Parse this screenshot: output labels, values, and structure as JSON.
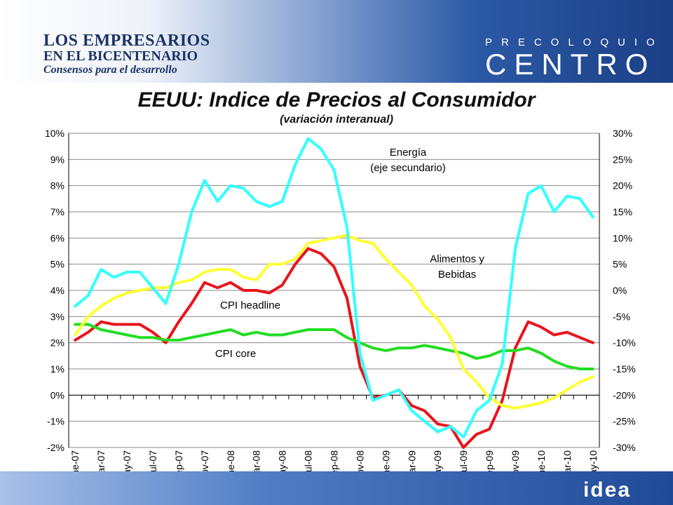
{
  "header": {
    "left_line1": "LOS EMPRESARIOS",
    "left_line2": "EN EL BICENTENARIO",
    "left_line3": "Consensos para el desarrollo",
    "right_line1": "PRECOLOQUIO",
    "right_line2": "CENTRO"
  },
  "footer": {
    "logo": "idea"
  },
  "chart_data": {
    "type": "line",
    "title": "EEUU: Indice de Precios al Consumidor",
    "subtitle": "(variación interanual)",
    "xlabel": "",
    "ylabel": "",
    "ylim": [
      -2,
      10
    ],
    "y2lim": [
      -30,
      30
    ],
    "y_ticks": [
      "10%",
      "9%",
      "8%",
      "7%",
      "6%",
      "5%",
      "4%",
      "3%",
      "2%",
      "1%",
      "0%",
      "-1%",
      "-2%"
    ],
    "y2_ticks": [
      "30%",
      "25%",
      "20%",
      "15%",
      "10%",
      "5%",
      "0%",
      "-5%",
      "-10%",
      "-15%",
      "-20%",
      "-25%",
      "-30%"
    ],
    "grid": true,
    "categories": [
      "ene-07",
      "mar-07",
      "may-07",
      "jul-07",
      "sep-07",
      "nov-07",
      "ene-08",
      "mar-08",
      "may-08",
      "jul-08",
      "sep-08",
      "nov-08",
      "ene-09",
      "mar-09",
      "may-09",
      "jul-09",
      "sep-09",
      "nov-09",
      "ene-10",
      "mar-10",
      "may-10"
    ],
    "x": [
      "ene-07",
      "feb-07",
      "mar-07",
      "abr-07",
      "may-07",
      "jun-07",
      "jul-07",
      "ago-07",
      "sep-07",
      "oct-07",
      "nov-07",
      "dic-07",
      "ene-08",
      "feb-08",
      "mar-08",
      "abr-08",
      "may-08",
      "jun-08",
      "jul-08",
      "ago-08",
      "sep-08",
      "oct-08",
      "nov-08",
      "dic-08",
      "ene-09",
      "feb-09",
      "mar-09",
      "abr-09",
      "may-09",
      "jun-09",
      "jul-09",
      "ago-09",
      "sep-09",
      "oct-09",
      "nov-09",
      "dic-09",
      "ene-10",
      "feb-10",
      "mar-10",
      "abr-10",
      "may-10"
    ],
    "series": [
      {
        "name": "CPI headline",
        "axis": "primary",
        "color": "#e8141b",
        "values": [
          2.1,
          2.4,
          2.8,
          2.7,
          2.7,
          2.7,
          2.4,
          2.0,
          2.8,
          3.5,
          4.3,
          4.1,
          4.3,
          4.0,
          4.0,
          3.9,
          4.2,
          5.0,
          5.6,
          5.4,
          4.9,
          3.7,
          1.1,
          -0.1,
          0.0,
          0.2,
          -0.4,
          -0.6,
          -1.1,
          -1.2,
          -2.0,
          -1.5,
          -1.3,
          -0.2,
          1.8,
          2.8,
          2.6,
          2.3,
          2.4,
          2.2,
          2.0
        ]
      },
      {
        "name": "CPI core",
        "axis": "primary",
        "color": "#22dd22",
        "values": [
          2.7,
          2.7,
          2.5,
          2.4,
          2.3,
          2.2,
          2.2,
          2.1,
          2.1,
          2.2,
          2.3,
          2.4,
          2.5,
          2.3,
          2.4,
          2.3,
          2.3,
          2.4,
          2.5,
          2.5,
          2.5,
          2.2,
          2.0,
          1.8,
          1.7,
          1.8,
          1.8,
          1.9,
          1.8,
          1.7,
          1.6,
          1.4,
          1.5,
          1.7,
          1.7,
          1.8,
          1.6,
          1.3,
          1.1,
          1.0,
          1.0
        ]
      },
      {
        "name": "Alimentos y Bebidas",
        "axis": "primary",
        "color": "#ffff33",
        "values": [
          2.3,
          3.0,
          3.4,
          3.7,
          3.9,
          4.0,
          4.1,
          4.1,
          4.3,
          4.4,
          4.7,
          4.8,
          4.8,
          4.5,
          4.4,
          5.0,
          5.0,
          5.2,
          5.8,
          5.9,
          6.0,
          6.1,
          5.9,
          5.8,
          5.2,
          4.7,
          4.2,
          3.4,
          2.9,
          2.2,
          1.0,
          0.5,
          -0.1,
          -0.4,
          -0.5,
          -0.4,
          -0.3,
          -0.1,
          0.2,
          0.5,
          0.7
        ]
      },
      {
        "name": "Energía",
        "axis": "secondary",
        "color": "#33ffff",
        "values": [
          -3.0,
          -1.0,
          4.0,
          2.5,
          3.5,
          3.5,
          0.5,
          -2.5,
          5.0,
          15.0,
          21.0,
          17.0,
          20.0,
          19.5,
          17.0,
          16.0,
          17.0,
          24.0,
          29.0,
          27.0,
          23.0,
          12.0,
          -12.0,
          -21.0,
          -20.0,
          -19.0,
          -23.0,
          -25.0,
          -27.0,
          -26.0,
          -28.0,
          -23.0,
          -21.0,
          -14.0,
          8.0,
          18.5,
          20.0,
          15.0,
          18.0,
          17.5,
          14.0
        ]
      }
    ],
    "annotations": {
      "energia_1": "Energía",
      "energia_2": "(eje secundario)",
      "alimentos_1": "Alimentos y",
      "alimentos_2": "Bebidas",
      "cpi_headline": "CPI headline",
      "cpi_core": "CPI core"
    }
  }
}
